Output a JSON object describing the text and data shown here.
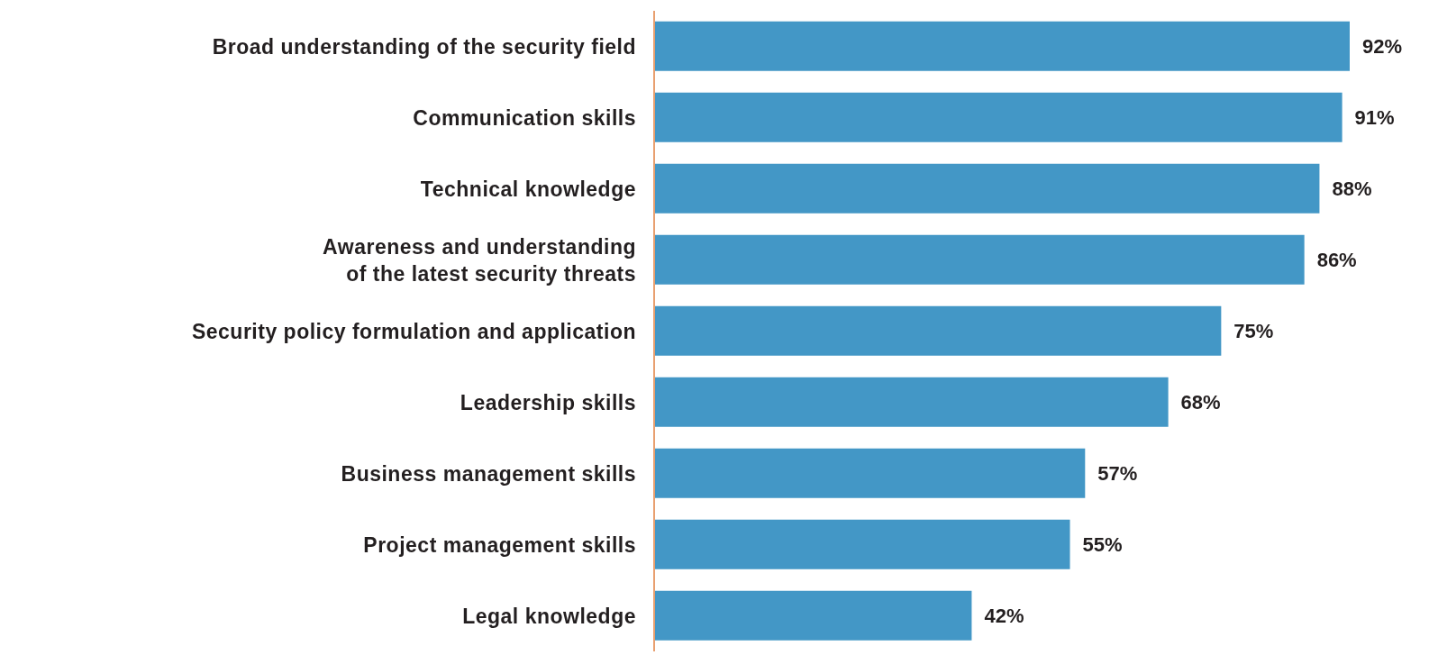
{
  "chart_data": {
    "type": "bar",
    "orientation": "horizontal",
    "categories": [
      "Broad understanding of the security field",
      "Communication skills",
      "Technical knowledge",
      "Awareness and understanding\nof the latest security threats",
      "Security policy formulation and application",
      "Leadership skills",
      "Business management skills",
      "Project management skills",
      "Legal knowledge"
    ],
    "values": [
      92,
      91,
      88,
      86,
      75,
      68,
      57,
      55,
      42
    ],
    "value_labels": [
      "92%",
      "91%",
      "88%",
      "86%",
      "75%",
      "68%",
      "57%",
      "55%",
      "42%"
    ],
    "color": "#4397c6",
    "grid": false,
    "legend": false
  }
}
